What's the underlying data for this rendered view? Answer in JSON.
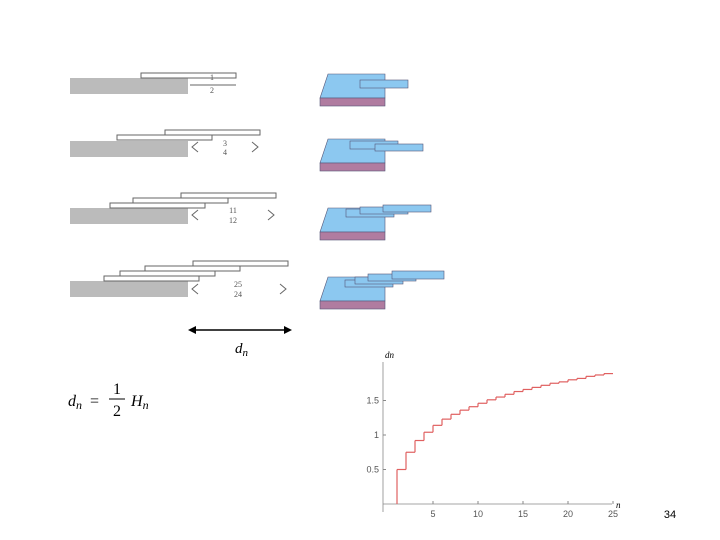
{
  "offset_labels": [
    {
      "num": "1",
      "den": "2"
    },
    {
      "num": "3",
      "den": "4"
    },
    {
      "num": "11",
      "den": "12"
    },
    {
      "num": "25",
      "den": "24"
    }
  ],
  "span_label": {
    "main": "d",
    "sub": "n"
  },
  "formula": {
    "lhs_main": "d",
    "lhs_sub": "n",
    "equals": "=",
    "num": "1",
    "den": "2",
    "rhs_main": "H",
    "rhs_sub": "n"
  },
  "slide_number": "34",
  "chart_data": {
    "type": "line",
    "step": true,
    "y_label": "dn",
    "x_label": "n",
    "color": "#e06060",
    "x": [
      1,
      2,
      3,
      4,
      5,
      6,
      7,
      8,
      9,
      10,
      11,
      12,
      13,
      14,
      15,
      16,
      17,
      18,
      19,
      20,
      21,
      22,
      23,
      24
    ],
    "values": [
      0.5,
      0.75,
      0.92,
      1.04,
      1.14,
      1.23,
      1.3,
      1.36,
      1.41,
      1.46,
      1.51,
      1.55,
      1.59,
      1.63,
      1.66,
      1.69,
      1.72,
      1.75,
      1.77,
      1.8,
      1.82,
      1.85,
      1.87,
      1.89
    ],
    "xlim": [
      0,
      25
    ],
    "ylim": [
      0,
      2
    ],
    "xticks": [
      5,
      10,
      15,
      20,
      25
    ],
    "yticks": [
      0.5,
      1,
      1.5
    ]
  }
}
